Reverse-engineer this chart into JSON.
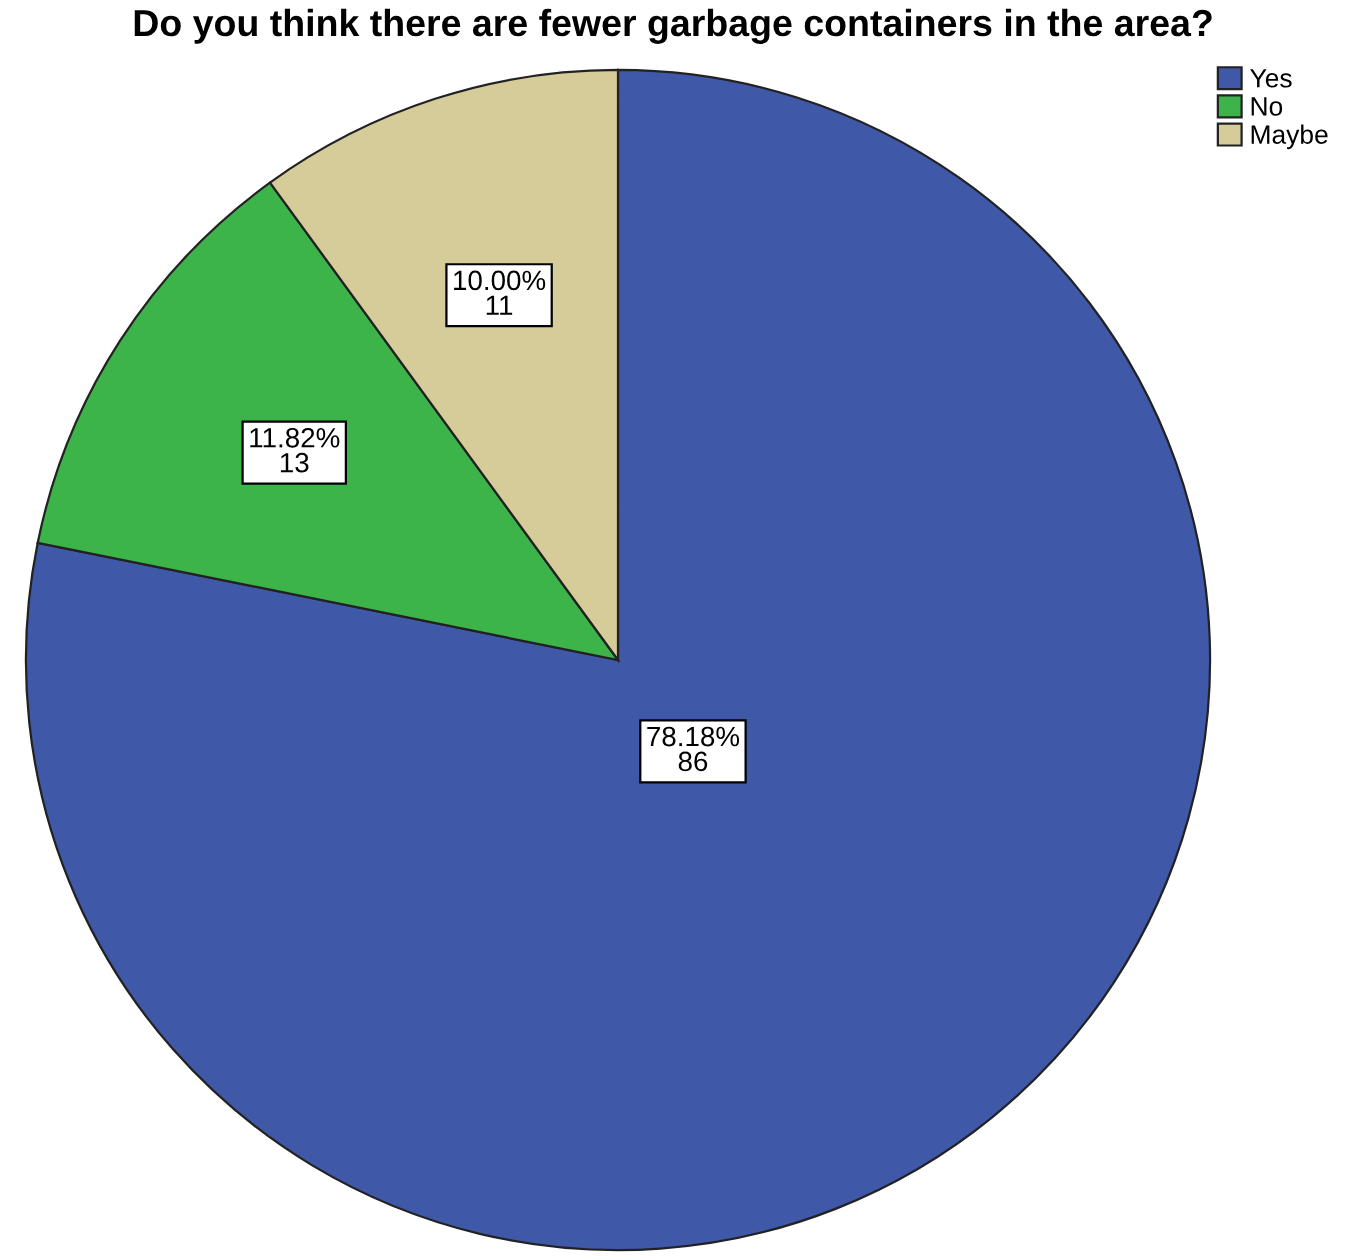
{
  "chart_data": {
    "type": "pie",
    "title": "Do you think there are fewer garbage containers in the area?",
    "categories": [
      "Yes",
      "No",
      "Maybe"
    ],
    "values": [
      86,
      13,
      11
    ],
    "value_labels": [
      "78.18%\n86",
      "11.82%\n13",
      "10.00%\n11"
    ],
    "colors": [
      "#3f58a8",
      "#3cb44a",
      "#d5cc9a"
    ],
    "legend": "top right"
  }
}
